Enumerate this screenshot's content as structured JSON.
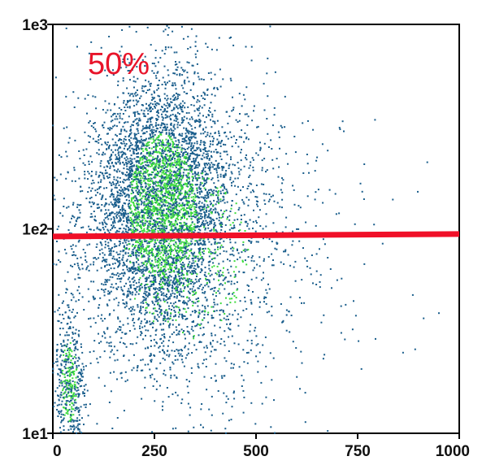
{
  "chart_data": {
    "type": "scatter",
    "title": "",
    "xlabel": "",
    "ylabel": "",
    "xlim": [
      0,
      1000
    ],
    "ylim": [
      10,
      1000
    ],
    "yscale": "log",
    "grid": false,
    "x_ticks": [
      "0",
      "250",
      "500",
      "750",
      "1000"
    ],
    "y_ticks": [
      "1e1",
      "1e2",
      "1e3"
    ],
    "gate_line": {
      "y": 93,
      "x_start": 0,
      "x_end": 1000,
      "color": "#f01028"
    },
    "annotation": {
      "text": "50%"
    },
    "series": [
      {
        "color_low_density": "#1a5e8c",
        "color_high_density": "#3ddc3d",
        "clusters": [
          {
            "center": [
              270,
              130
            ],
            "spread": [
              75,
              0.32
            ],
            "count": 5200
          },
          {
            "center": [
              330,
              75
            ],
            "spread": [
              140,
              0.38
            ],
            "count": 1400
          },
          {
            "center": [
              40,
              18
            ],
            "spread": [
              18,
              0.18
            ],
            "count": 500
          }
        ]
      }
    ]
  }
}
